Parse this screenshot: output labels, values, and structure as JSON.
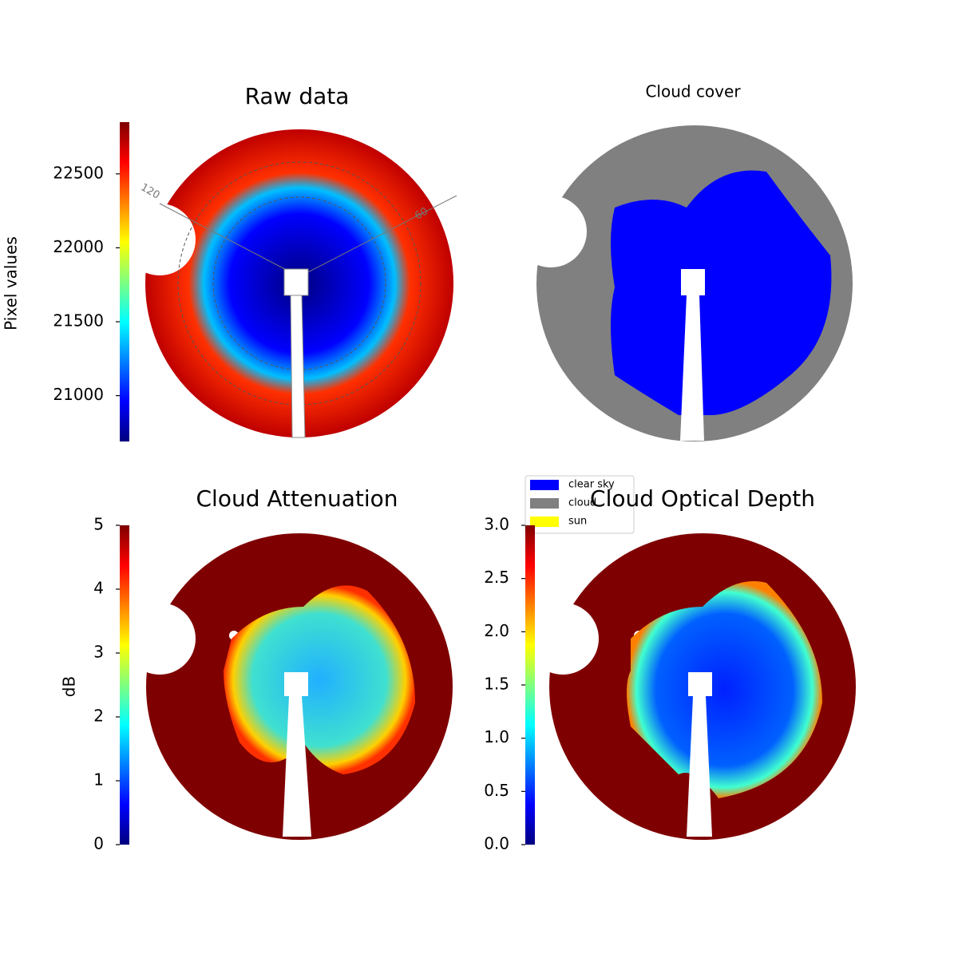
{
  "chart_data": [
    {
      "type": "image",
      "title": "Raw data",
      "cmap": "jet",
      "colorbar": {
        "label": "Pixel values",
        "lim": [
          20690,
          22850
        ],
        "ticks": [
          21000,
          21500,
          22000,
          22500
        ]
      },
      "annotations": [
        "120",
        "60"
      ]
    },
    {
      "type": "categorical-image",
      "title": "Cloud cover",
      "series": [
        {
          "name": "clear sky",
          "color": "#0000ff"
        },
        {
          "name": "cloud",
          "color": "#808080"
        },
        {
          "name": "sun",
          "color": "#ffff00"
        }
      ]
    },
    {
      "type": "image",
      "title": "Cloud Attenuation",
      "cmap": "jet",
      "colorbar": {
        "label": "dB",
        "lim": [
          0,
          5
        ],
        "ticks": [
          0,
          1,
          2,
          3,
          4,
          5
        ]
      }
    },
    {
      "type": "image",
      "title": "Cloud Optical Depth",
      "cmap": "jet",
      "colorbar": {
        "lim": [
          0,
          3
        ],
        "ticks": [
          {
            "value": 0,
            "label": "0.0"
          },
          0.5,
          {
            "value": 1,
            "label": "1.0"
          },
          1.5,
          {
            "value": 2,
            "label": "2.0"
          },
          2.5,
          {
            "value": 3,
            "label": "3.0"
          }
        ]
      }
    }
  ]
}
